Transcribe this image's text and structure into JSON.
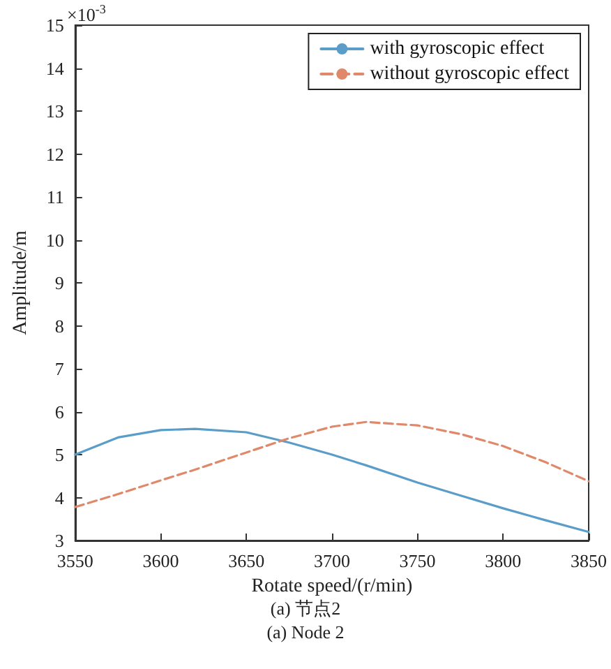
{
  "chart_data": {
    "type": "line",
    "xlabel": "Rotate speed/(r/min)",
    "ylabel": "Amplitude/m",
    "x": [
      3550,
      3575,
      3600,
      3620,
      3650,
      3675,
      3700,
      3720,
      3750,
      3775,
      3800,
      3825,
      3850
    ],
    "series": [
      {
        "name": "with gyroscopic effect",
        "color": "#5b9dc9",
        "line_style": "solid",
        "values": [
          5.0,
          5.4,
          5.57,
          5.6,
          5.52,
          5.28,
          5.0,
          4.75,
          4.35,
          4.05,
          3.75,
          3.47,
          3.2
        ]
      },
      {
        "name": "without gyroscopic effect",
        "color": "#e0896a",
        "line_style": "dashed",
        "values": [
          3.78,
          4.08,
          4.4,
          4.65,
          5.05,
          5.38,
          5.65,
          5.76,
          5.68,
          5.48,
          5.2,
          4.82,
          4.38
        ]
      }
    ],
    "xlim": [
      3550,
      3850
    ],
    "xticks": [
      3550,
      3600,
      3650,
      3700,
      3750,
      3800,
      3850
    ],
    "ylim": [
      3,
      15
    ],
    "yticks": [
      3,
      4,
      5,
      6,
      7,
      8,
      9,
      10,
      11,
      12,
      13,
      14,
      15
    ],
    "grid": false,
    "legend": "top right",
    "marker": "none",
    "annotations": [
      "×10$^{-3}$",
      "(a) 节点2",
      "(a) Node 2"
    ]
  }
}
